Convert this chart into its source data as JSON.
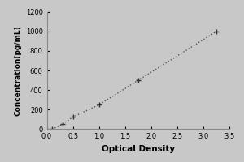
{
  "x_data": [
    0.1,
    0.3,
    0.5,
    1.0,
    1.75,
    3.25
  ],
  "y_data": [
    0,
    50,
    125,
    250,
    500,
    1000
  ],
  "xlabel": "Optical Density",
  "ylabel": "Concentration(pg/mL)",
  "xlim": [
    0,
    3.5
  ],
  "ylim": [
    0,
    1200
  ],
  "xticks": [
    0,
    0.5,
    1.0,
    1.5,
    2.0,
    2.5,
    3.0,
    3.5
  ],
  "yticks": [
    0,
    200,
    400,
    600,
    800,
    1000,
    1200
  ],
  "line_color": "#555555",
  "marker": "+",
  "marker_size": 5,
  "marker_color": "#333333",
  "figure_bg_color": "#c8c8c8",
  "plot_bg_color": "#c8c8c8",
  "xlabel_fontsize": 7.5,
  "ylabel_fontsize": 6.5,
  "tick_fontsize": 6,
  "linewidth": 1.0
}
